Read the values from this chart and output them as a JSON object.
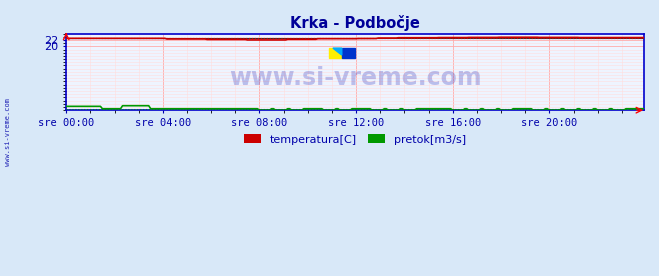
{
  "title": "Krka - Podbočje",
  "title_color": "#000099",
  "bg_color": "#d8e8f8",
  "plot_bg_color": "#eef4ff",
  "border_color": "#0000cc",
  "grid_color_major": "#ffaaaa",
  "grid_color_minor": "#ffdddd",
  "watermark": "www.si-vreme.com",
  "watermark_color": "#0000aa",
  "watermark_alpha": 0.22,
  "yticks": [
    20,
    22
  ],
  "ylim": [
    0,
    24
  ],
  "xlim": [
    0,
    287
  ],
  "xlabel_ticks": [
    0,
    48,
    96,
    144,
    192,
    240,
    287
  ],
  "xlabel_labels": [
    "sre 00:00",
    "sre 04:00",
    "sre 08:00",
    "sre 12:00",
    "sre 16:00",
    "sre 20:00",
    ""
  ],
  "temp_color": "#cc0000",
  "flow_color": "#009900",
  "height_color": "#0000cc",
  "legend_labels": [
    "temperatura[C]",
    "pretok[m3/s]"
  ],
  "legend_colors": [
    "#cc0000",
    "#009900"
  ],
  "temp_mean": 22.5,
  "flow_mean": 0.45,
  "logo_yellow": "#ffee00",
  "logo_blue": "#0033cc",
  "logo_cyan": "#00aaff"
}
